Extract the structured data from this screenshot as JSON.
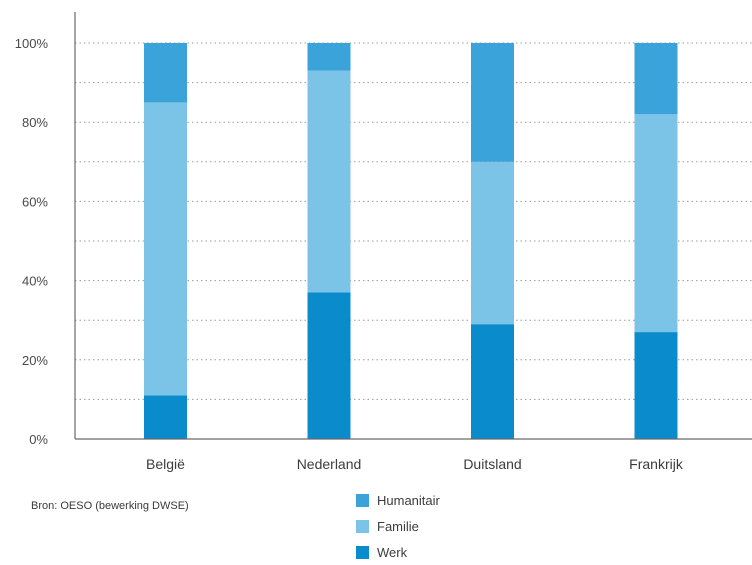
{
  "chart_data": {
    "type": "bar",
    "stacked": true,
    "categories": [
      "België",
      "Nederland",
      "Duitsland",
      "Frankrijk"
    ],
    "series": [
      {
        "name": "Werk",
        "color": "#0a8ccc",
        "values": [
          11,
          37,
          29,
          27
        ]
      },
      {
        "name": "Familie",
        "color": "#7cc3e8",
        "values": [
          74,
          56,
          41,
          55
        ]
      },
      {
        "name": "Humanitair",
        "color": "#3aa3d9",
        "values": [
          15,
          7,
          30,
          18
        ]
      }
    ],
    "ylim": [
      0,
      100
    ],
    "yticks": [
      "0%",
      "20%",
      "40%",
      "60%",
      "80%",
      "100%"
    ],
    "grid": true,
    "legend_order": [
      "Humanitair",
      "Familie",
      "Werk"
    ],
    "legend_position": "bottom"
  },
  "source_text": "Bron: OESO (bewerking DWSE)"
}
